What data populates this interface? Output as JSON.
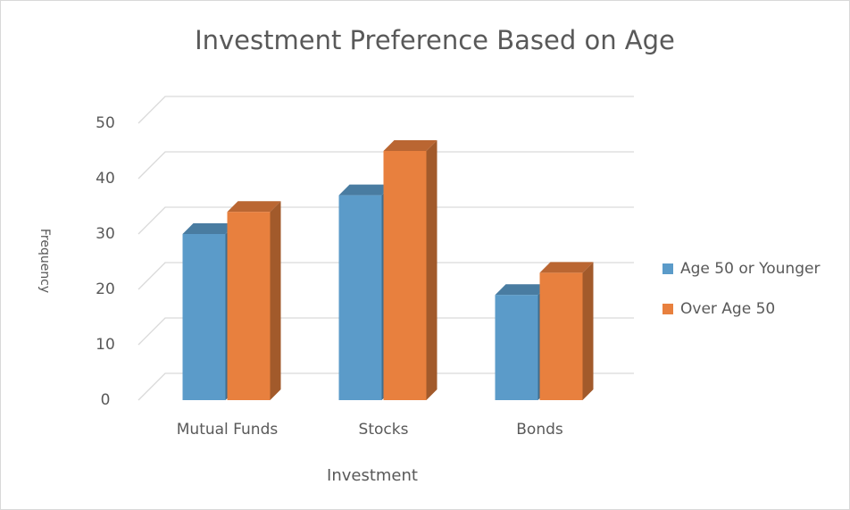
{
  "chart_data": {
    "type": "bar3d",
    "title": "Investment Preference Based on Age",
    "x_label": "Investment",
    "y_label": "Frequency",
    "categories": [
      "Mutual Funds",
      "Stocks",
      "Bonds"
    ],
    "series": [
      {
        "name": "Age 50 or Younger",
        "color": "#5b9bc9",
        "values": [
          30,
          37,
          19
        ]
      },
      {
        "name": "Over Age 50",
        "color": "#e8803e",
        "values": [
          34,
          45,
          23
        ]
      }
    ],
    "ylim": [
      0,
      50
    ],
    "yticks": [
      0,
      10,
      20,
      30,
      40,
      50
    ],
    "grid": true,
    "legend": "right"
  }
}
